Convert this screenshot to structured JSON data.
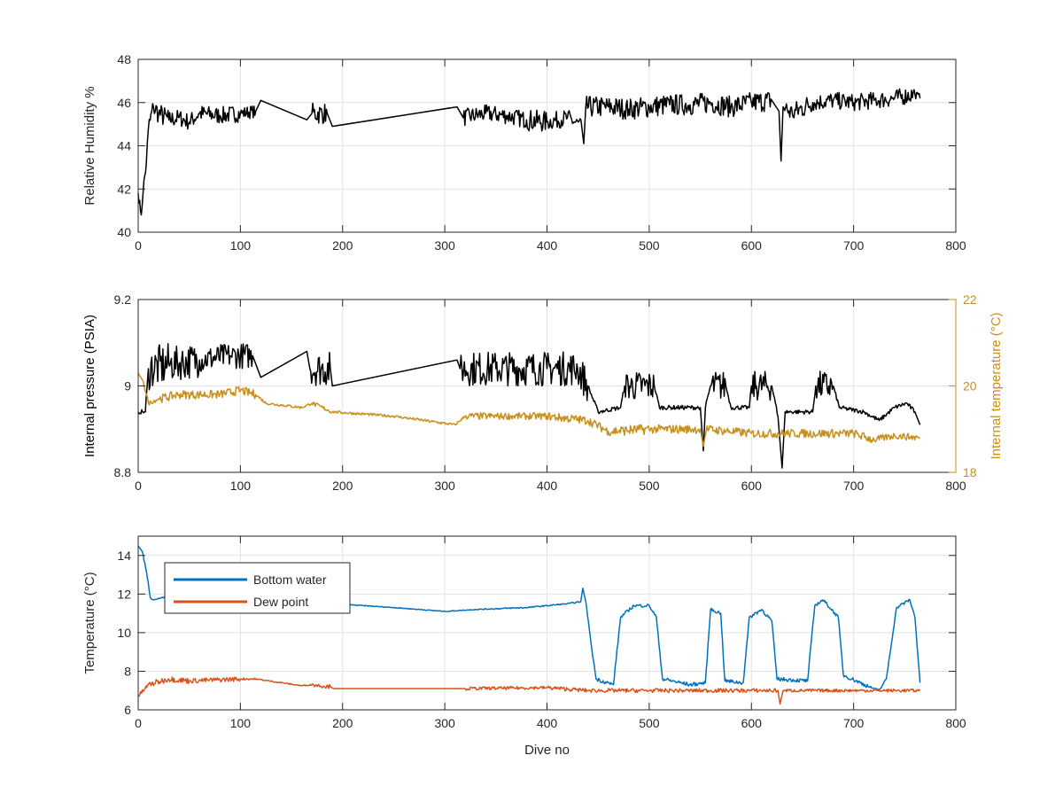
{
  "chart_data": [
    {
      "type": "line",
      "xlabel": "",
      "ylabel": "Relative Humidity %",
      "xlim": [
        0,
        800
      ],
      "ylim": [
        40,
        48
      ],
      "xticks": [
        0,
        100,
        200,
        300,
        400,
        500,
        600,
        700,
        800
      ],
      "yticks": [
        40,
        42,
        44,
        46,
        48
      ],
      "grid": true,
      "series": [
        {
          "name": "Relative humidity",
          "color": "#000000",
          "axis": "left",
          "points": [
            [
              0,
              41.8,
              0.3
            ],
            [
              3,
              40.8,
              0.2
            ],
            [
              5,
              42,
              0.3
            ],
            [
              8,
              43.2,
              0.4
            ],
            [
              10,
              44.8,
              0.5
            ],
            [
              15,
              45.8,
              0.5
            ],
            [
              20,
              45.5,
              0.5
            ],
            [
              30,
              45.2,
              0.5
            ],
            [
              40,
              45.3,
              0.4
            ],
            [
              50,
              45.1,
              0.4
            ],
            [
              60,
              45.5,
              0.4
            ],
            [
              80,
              45.4,
              0.4
            ],
            [
              100,
              45.5,
              0.4
            ],
            [
              115,
              45.6,
              0.3
            ],
            [
              120,
              46.1,
              0
            ],
            [
              165,
              45.2,
              0
            ],
            [
              170,
              45.5,
              0.5
            ],
            [
              185,
              45.5,
              0.5
            ],
            [
              190,
              44.9,
              0
            ],
            [
              312,
              45.8,
              0
            ],
            [
              318,
              45.3,
              0.4
            ],
            [
              340,
              45.5,
              0.4
            ],
            [
              360,
              45.4,
              0.4
            ],
            [
              380,
              45.2,
              0.5
            ],
            [
              400,
              45.1,
              0.5
            ],
            [
              420,
              45.3,
              0.4
            ],
            [
              434,
              44.9,
              0.5
            ],
            [
              436,
              44.1,
              0
            ],
            [
              438,
              45.8,
              0.6
            ],
            [
              460,
              45.8,
              0.5
            ],
            [
              480,
              45.7,
              0.5
            ],
            [
              500,
              45.8,
              0.5
            ],
            [
              520,
              45.9,
              0.5
            ],
            [
              540,
              45.9,
              0.5
            ],
            [
              560,
              46,
              0.5
            ],
            [
              580,
              45.8,
              0.5
            ],
            [
              600,
              46,
              0.5
            ],
            [
              620,
              46.1,
              0.6
            ],
            [
              627,
              45.6,
              0
            ],
            [
              629,
              43.3,
              0
            ],
            [
              631,
              45.8,
              0.5
            ],
            [
              640,
              45.5,
              0.5
            ],
            [
              660,
              46,
              0.5
            ],
            [
              680,
              46.1,
              0.4
            ],
            [
              700,
              46,
              0.4
            ],
            [
              720,
              46.1,
              0.4
            ],
            [
              740,
              46.2,
              0.4
            ],
            [
              760,
              46.4,
              0.4
            ],
            [
              765,
              46.2,
              0.2
            ]
          ]
        }
      ]
    },
    {
      "type": "line",
      "xlabel": "",
      "ylabel": "Internal pressure (PSIA)",
      "ylabel_right": "Internal temperature (°C)",
      "xlim": [
        0,
        800
      ],
      "ylim": [
        8.8,
        9.2
      ],
      "ylim_right": [
        18,
        22
      ],
      "xticks": [
        0,
        100,
        200,
        300,
        400,
        500,
        600,
        700,
        800
      ],
      "yticks": [
        8.8,
        9,
        9.2
      ],
      "yticks_right": [
        18,
        20,
        22
      ],
      "grid": true,
      "series": [
        {
          "name": "Internal pressure",
          "color": "#000000",
          "axis": "left",
          "points": [
            [
              0,
              8.94,
              0.005
            ],
            [
              7,
              8.94,
              0.005
            ],
            [
              10,
              9.04,
              0.05
            ],
            [
              30,
              9.05,
              0.05
            ],
            [
              60,
              9.06,
              0.04
            ],
            [
              90,
              9.07,
              0.03
            ],
            [
              112,
              9.07,
              0.03
            ],
            [
              120,
              9.02,
              0
            ],
            [
              165,
              9.08,
              0
            ],
            [
              168,
              9.04,
              0.04
            ],
            [
              188,
              9.04,
              0.04
            ],
            [
              190,
              9.0,
              0
            ],
            [
              312,
              9.06,
              0
            ],
            [
              315,
              9.04,
              0.04
            ],
            [
              350,
              9.04,
              0.04
            ],
            [
              400,
              9.04,
              0.04
            ],
            [
              430,
              9.04,
              0.04
            ],
            [
              440,
              9.0,
              0.04
            ],
            [
              450,
              8.94,
              0.005
            ],
            [
              472,
              8.95,
              0.005
            ],
            [
              476,
              9.0,
              0.035
            ],
            [
              505,
              9.0,
              0.035
            ],
            [
              510,
              8.95,
              0.005
            ],
            [
              550,
              8.95,
              0.005
            ],
            [
              553,
              8.85,
              0
            ],
            [
              555,
              8.95,
              0.005
            ],
            [
              560,
              9.0,
              0.035
            ],
            [
              575,
              9.0,
              0.035
            ],
            [
              580,
              8.95,
              0.005
            ],
            [
              598,
              8.95,
              0.005
            ],
            [
              600,
              9.0,
              0.035
            ],
            [
              620,
              9.0,
              0.035
            ],
            [
              626,
              8.93,
              0.005
            ],
            [
              630,
              8.81,
              0
            ],
            [
              633,
              8.94,
              0.005
            ],
            [
              660,
              8.94,
              0.005
            ],
            [
              663,
              9.0,
              0.035
            ],
            [
              680,
              9.0,
              0.035
            ],
            [
              686,
              8.95,
              0.005
            ],
            [
              710,
              8.94,
              0.005
            ],
            [
              725,
              8.92,
              0.005
            ],
            [
              740,
              8.95,
              0.005
            ],
            [
              752,
              8.96,
              0.005
            ],
            [
              760,
              8.94,
              0.005
            ],
            [
              765,
              8.91,
              0
            ]
          ]
        },
        {
          "name": "Internal temperature",
          "color": "#C8901A",
          "axis": "right",
          "points": [
            [
              0,
              20.3,
              0
            ],
            [
              5,
              20.1,
              0.05
            ],
            [
              10,
              19.6,
              0.05
            ],
            [
              20,
              19.7,
              0.1
            ],
            [
              40,
              19.8,
              0.12
            ],
            [
              60,
              19.8,
              0.1
            ],
            [
              80,
              19.8,
              0.1
            ],
            [
              100,
              19.9,
              0.1
            ],
            [
              115,
              19.8,
              0.1
            ],
            [
              125,
              19.6,
              0.03
            ],
            [
              160,
              19.5,
              0.03
            ],
            [
              170,
              19.6,
              0.15
            ],
            [
              190,
              19.4,
              0.05
            ],
            [
              250,
              19.3,
              0.03
            ],
            [
              310,
              19.1,
              0.03
            ],
            [
              320,
              19.3,
              0.08
            ],
            [
              360,
              19.3,
              0.08
            ],
            [
              400,
              19.3,
              0.1
            ],
            [
              440,
              19.2,
              0.1
            ],
            [
              460,
              18.95,
              0.15
            ],
            [
              500,
              19.0,
              0.12
            ],
            [
              550,
              19.0,
              0.1
            ],
            [
              553,
              18.6,
              0
            ],
            [
              556,
              19.0,
              0.1
            ],
            [
              600,
              18.9,
              0.1
            ],
            [
              650,
              18.9,
              0.1
            ],
            [
              700,
              18.9,
              0.1
            ],
            [
              720,
              18.75,
              0.1
            ],
            [
              740,
              18.85,
              0.08
            ],
            [
              765,
              18.8,
              0.08
            ]
          ]
        }
      ]
    },
    {
      "type": "line",
      "xlabel": "Dive no",
      "ylabel": "Temperature (°C)",
      "xlim": [
        0,
        800
      ],
      "ylim": [
        6,
        15
      ],
      "xticks": [
        0,
        100,
        200,
        300,
        400,
        500,
        600,
        700,
        800
      ],
      "yticks": [
        6,
        8,
        10,
        12,
        14
      ],
      "grid": true,
      "legend": "top-left",
      "series": [
        {
          "name": "Bottom water",
          "color": "#0072BD",
          "axis": "left",
          "points": [
            [
              0,
              14.5,
              0
            ],
            [
              4,
              14.2,
              0.1
            ],
            [
              8,
              13.2,
              0.1
            ],
            [
              12,
              11.8,
              0.05
            ],
            [
              15,
              11.7,
              0.03
            ],
            [
              30,
              11.9,
              0.05
            ],
            [
              100,
              11.7,
              0.03
            ],
            [
              190,
              11.5,
              0.02
            ],
            [
              250,
              11.3,
              0.02
            ],
            [
              300,
              11.1,
              0.02
            ],
            [
              330,
              11.2,
              0.03
            ],
            [
              380,
              11.3,
              0.03
            ],
            [
              420,
              11.5,
              0.03
            ],
            [
              433,
              11.6,
              0.05
            ],
            [
              435,
              12.3,
              0
            ],
            [
              438,
              11.6,
              0.05
            ],
            [
              443,
              9.5,
              0.1
            ],
            [
              448,
              7.6,
              0.1
            ],
            [
              465,
              7.3,
              0.1
            ],
            [
              472,
              10.8,
              0.1
            ],
            [
              485,
              11.4,
              0.08
            ],
            [
              500,
              11.4,
              0.08
            ],
            [
              507,
              10.8,
              0.08
            ],
            [
              513,
              7.6,
              0.1
            ],
            [
              540,
              7.3,
              0.1
            ],
            [
              555,
              7.4,
              0.1
            ],
            [
              560,
              11.2,
              0.08
            ],
            [
              570,
              11.0,
              0.08
            ],
            [
              574,
              7.5,
              0.1
            ],
            [
              592,
              7.4,
              0.1
            ],
            [
              598,
              10.8,
              0.1
            ],
            [
              610,
              11.2,
              0.1
            ],
            [
              620,
              10.6,
              0.1
            ],
            [
              625,
              7.6,
              0.1
            ],
            [
              655,
              7.5,
              0.1
            ],
            [
              662,
              11.4,
              0.1
            ],
            [
              670,
              11.7,
              0.08
            ],
            [
              685,
              10.8,
              0.1
            ],
            [
              690,
              7.8,
              0.1
            ],
            [
              715,
              7.2,
              0.1
            ],
            [
              725,
              7.0,
              0.05
            ],
            [
              732,
              7.6,
              0.05
            ],
            [
              742,
              11.3,
              0.1
            ],
            [
              755,
              11.7,
              0.08
            ],
            [
              760,
              10.8,
              0.1
            ],
            [
              765,
              7.4,
              0.05
            ]
          ]
        },
        {
          "name": "Dew point",
          "color": "#D95319",
          "axis": "left",
          "points": [
            [
              0,
              6.7,
              0.1
            ],
            [
              10,
              7.3,
              0.15
            ],
            [
              30,
              7.6,
              0.25
            ],
            [
              50,
              7.5,
              0.15
            ],
            [
              100,
              7.6,
              0.12
            ],
            [
              115,
              7.6,
              0.05
            ],
            [
              160,
              7.25,
              0.03
            ],
            [
              170,
              7.3,
              0.15
            ],
            [
              188,
              7.2,
              0.1
            ],
            [
              191,
              7.1,
              0
            ],
            [
              310,
              7.1,
              0
            ],
            [
              320,
              7.1,
              0.08
            ],
            [
              400,
              7.15,
              0.1
            ],
            [
              440,
              7.0,
              0.1
            ],
            [
              500,
              7.0,
              0.1
            ],
            [
              600,
              7.0,
              0.1
            ],
            [
              626,
              7.0,
              0.1
            ],
            [
              628,
              6.3,
              0
            ],
            [
              631,
              7.0,
              0.1
            ],
            [
              700,
              7.0,
              0.08
            ],
            [
              765,
              7.0,
              0.08
            ]
          ]
        }
      ]
    }
  ]
}
